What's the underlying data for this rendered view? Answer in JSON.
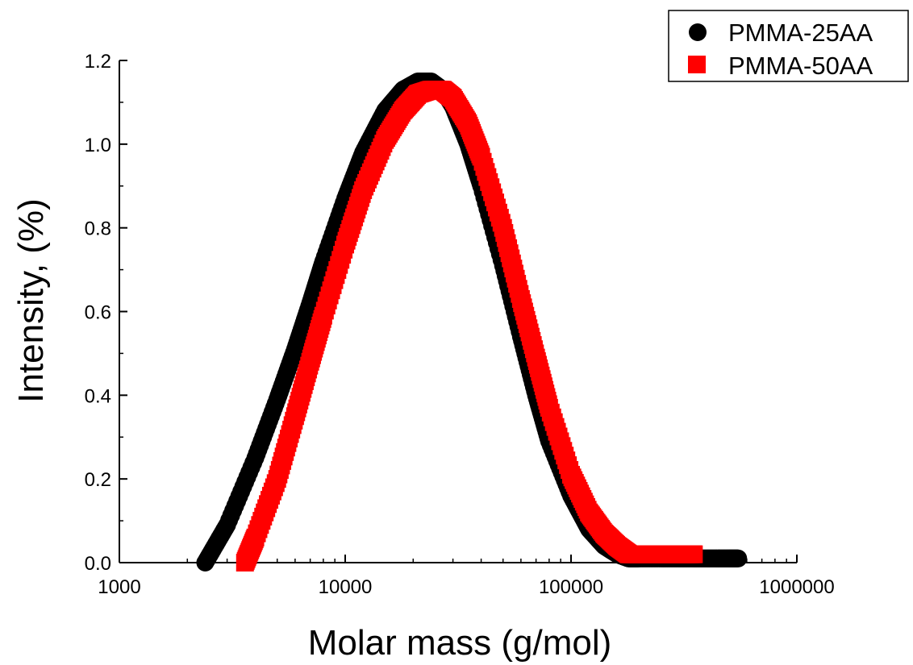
{
  "chart_data": {
    "type": "scatter",
    "xlabel": "Molar mass (g/mol)",
    "ylabel": "Intensity, (%)",
    "xscale": "log",
    "xlim": [
      1000,
      1000000
    ],
    "ylim": [
      0.0,
      1.2
    ],
    "x_ticks": [
      "1000",
      "10000",
      "100000",
      "1000000"
    ],
    "y_ticks": [
      "0.0",
      "0.2",
      "0.4",
      "0.6",
      "0.8",
      "1.0",
      "1.2"
    ],
    "grid": false,
    "legend_position": "top-right",
    "series": [
      {
        "name": "PMMA-25AA",
        "marker": "circle",
        "color": "#000000",
        "x": [
          2400,
          3000,
          4000,
          5000,
          6000,
          7000,
          8000,
          10000,
          12000,
          15000,
          18000,
          21000,
          24000,
          27000,
          30000,
          35000,
          40000,
          50000,
          60000,
          70000,
          80000,
          100000,
          120000,
          140000,
          160000,
          180000,
          200000,
          250000,
          300000,
          350000,
          400000,
          450000,
          500000,
          550000
        ],
        "y": [
          0.0,
          0.09,
          0.25,
          0.39,
          0.51,
          0.62,
          0.72,
          0.87,
          0.98,
          1.08,
          1.13,
          1.15,
          1.15,
          1.13,
          1.09,
          1.0,
          0.9,
          0.71,
          0.54,
          0.4,
          0.29,
          0.16,
          0.08,
          0.04,
          0.02,
          0.01,
          0.01,
          0.01,
          0.01,
          0.01,
          0.01,
          0.01,
          0.01,
          0.01
        ]
      },
      {
        "name": "PMMA-50AA",
        "marker": "square",
        "color": "#ff0000",
        "x": [
          3600,
          4000,
          5000,
          6000,
          7000,
          8000,
          10000,
          12000,
          15000,
          18000,
          21000,
          24000,
          27000,
          30000,
          35000,
          40000,
          50000,
          60000,
          70000,
          80000,
          100000,
          120000,
          140000,
          160000,
          180000,
          200000,
          250000,
          300000,
          350000
        ],
        "y": [
          0.0,
          0.06,
          0.2,
          0.35,
          0.48,
          0.59,
          0.76,
          0.89,
          1.01,
          1.08,
          1.12,
          1.13,
          1.13,
          1.11,
          1.05,
          0.97,
          0.8,
          0.63,
          0.49,
          0.37,
          0.21,
          0.12,
          0.07,
          0.04,
          0.02,
          0.02,
          0.02,
          0.02,
          0.02
        ]
      }
    ]
  }
}
